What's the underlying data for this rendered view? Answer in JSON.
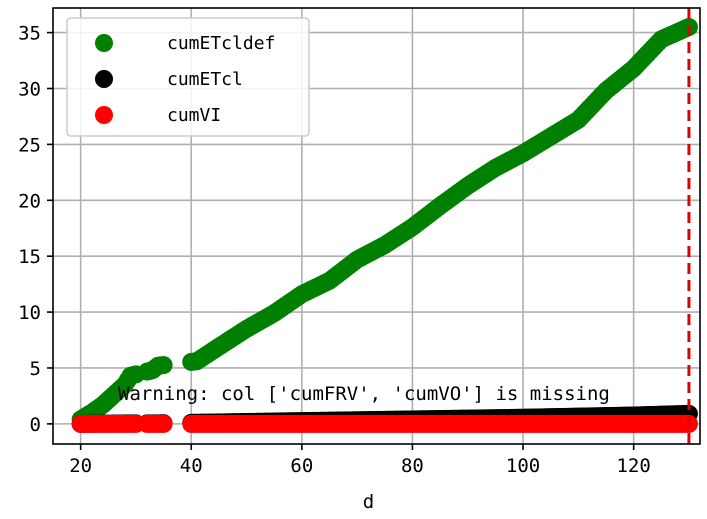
{
  "chart_data": {
    "type": "scatter",
    "xlabel": "d",
    "ylabel": "",
    "xlim": [
      15,
      132
    ],
    "ylim": [
      -1.8,
      37.2
    ],
    "xticks": [
      20,
      40,
      60,
      80,
      100,
      120
    ],
    "yticks": [
      0,
      5,
      10,
      15,
      20,
      25,
      30,
      35
    ],
    "grid": true,
    "legend_position": "top-left",
    "vline": {
      "x": 130,
      "color": "#e00000",
      "style": "dashed"
    },
    "annotation": "Warning: col ['cumFRV', 'cumVO'] is missing",
    "gap_x_ranges": [
      [
        30,
        32
      ],
      [
        35,
        40
      ]
    ],
    "series": [
      {
        "name": "cumETcldef",
        "color": "#008000",
        "x": [
          20,
          22,
          24,
          26,
          28,
          29,
          33,
          34,
          41,
          45,
          50,
          55,
          60,
          65,
          70,
          75,
          80,
          85,
          90,
          95,
          100,
          105,
          110,
          115,
          120,
          125,
          130
        ],
        "y": [
          0.4,
          1.0,
          1.7,
          2.6,
          3.5,
          4.3,
          4.8,
          5.2,
          5.6,
          6.9,
          8.5,
          9.9,
          11.6,
          12.8,
          14.7,
          16.0,
          17.6,
          19.5,
          21.3,
          22.9,
          24.2,
          25.7,
          27.2,
          29.8,
          31.8,
          34.4,
          35.5
        ]
      },
      {
        "name": "cumETcl",
        "color": "#000000",
        "x": [
          20,
          30,
          33,
          34,
          41,
          60,
          80,
          100,
          120,
          130
        ],
        "y": [
          0.0,
          0.05,
          0.05,
          0.05,
          0.1,
          0.25,
          0.4,
          0.55,
          0.75,
          0.9
        ]
      },
      {
        "name": "cumVI",
        "color": "#ff0000",
        "x": [
          20,
          30,
          33,
          34,
          41,
          130
        ],
        "y": [
          0,
          0,
          0,
          0,
          0,
          0
        ]
      }
    ]
  }
}
